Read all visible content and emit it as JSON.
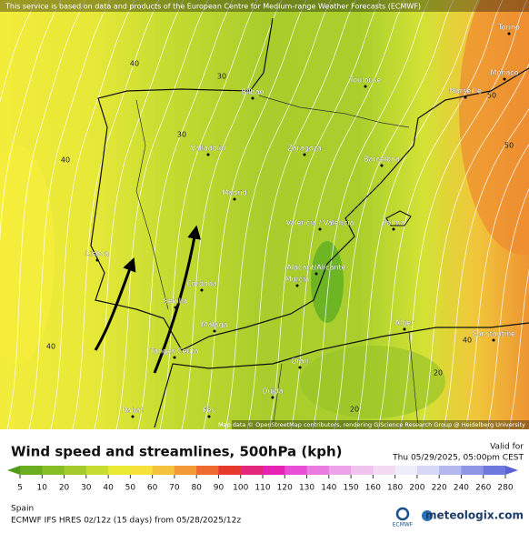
{
  "header": {
    "notice": "This service is based on data and products of the European Centre for Medium-range Weather Forecasts (ECMWF)"
  },
  "map": {
    "cities": [
      "Torino",
      "Monaco",
      "Toulouse",
      "Marseille",
      "Bilbao",
      "Valladolid",
      "Zaragoza",
      "Barcelona",
      "Madrid",
      "Valencia / València",
      "Palma",
      "Lisboa",
      "Alacant/Alicante",
      "Murcia",
      "Córdoba",
      "Sevilla",
      "Málaga",
      "Tanger Ceuta",
      "Alger",
      "Constantine",
      "Oran",
      "Oujda",
      "Rabat",
      "Fès"
    ],
    "contour_labels": [
      40,
      30,
      30,
      40,
      50,
      50,
      40,
      40,
      20,
      20
    ],
    "attribution": "Map data © OpenStreetMap contributors, rendering GIScience Research Group @ Heidelberg University"
  },
  "legend": {
    "title": "Wind speed and streamlines, 500hPa (kph)",
    "valid_label": "Valid for",
    "valid_time": "Thu 05/29/2025, 05:00pm CEST",
    "ticks": [
      5,
      10,
      20,
      30,
      40,
      50,
      60,
      70,
      80,
      90,
      100,
      110,
      120,
      130,
      140,
      150,
      160,
      180,
      200,
      220,
      240,
      260,
      280
    ],
    "colors": [
      "#4f9e1b",
      "#6aae1f",
      "#86bd24",
      "#a3cb2b",
      "#c6dc2e",
      "#e8ea33",
      "#f6e13a",
      "#f4c23c",
      "#f19a36",
      "#ee6a2e",
      "#e8392d",
      "#e3277a",
      "#e623b4",
      "#e84fd6",
      "#ea7ce0",
      "#eda3e8",
      "#f0c4ee",
      "#f3dcf3",
      "#eeeefa",
      "#d6d8f5",
      "#b3b7ee",
      "#8f96e5",
      "#6f78dc",
      "#5b63d4"
    ]
  },
  "footer": {
    "region": "Spain",
    "model": "ECMWF IFS HRES 0z/12z (15 days) from 05/28/2025/12z",
    "logo": "ECMWF",
    "site": "meteologix.com"
  }
}
